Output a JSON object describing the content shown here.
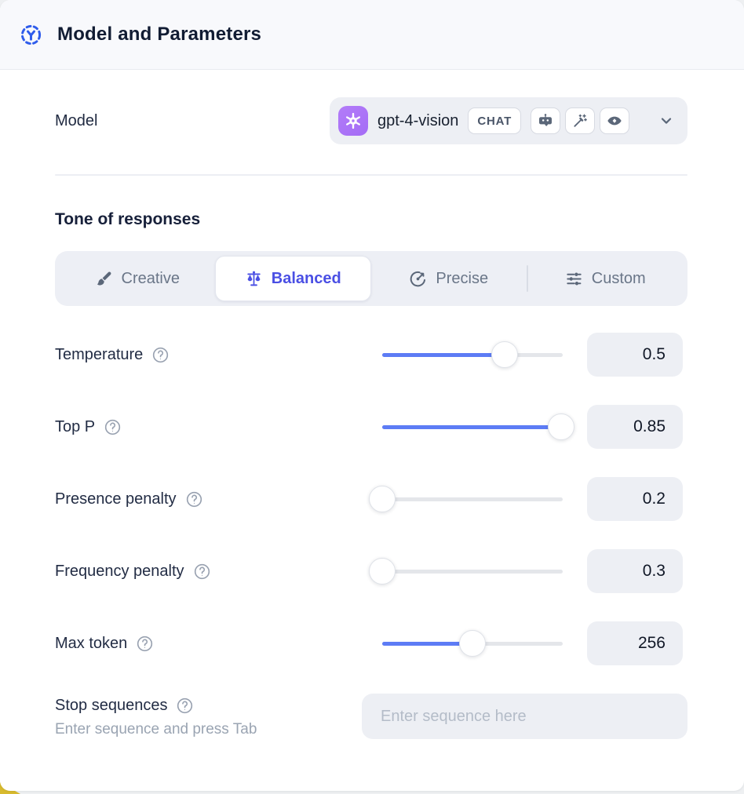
{
  "header": {
    "title": "Model and Parameters",
    "icon": "model-hub-icon"
  },
  "model": {
    "label": "Model",
    "selected": {
      "name": "gpt-4-vision",
      "provider_icon": "openai-logo",
      "type_badge": "CHAT",
      "capability_icons": [
        "robot-icon",
        "wand-sparkles-icon",
        "eye-icon"
      ]
    }
  },
  "tone": {
    "heading": "Tone of responses",
    "options": [
      {
        "label": "Creative",
        "icon": "brush-icon",
        "selected": false
      },
      {
        "label": "Balanced",
        "icon": "scale-icon",
        "selected": true
      },
      {
        "label": "Precise",
        "icon": "target-icon",
        "selected": false
      },
      {
        "label": "Custom",
        "icon": "sliders-icon",
        "selected": false
      }
    ]
  },
  "parameters": [
    {
      "label": "Temperature",
      "value": "0.5",
      "fill_percent": 68
    },
    {
      "label": "Top P",
      "value": "0.85",
      "fill_percent": 99
    },
    {
      "label": "Presence penalty",
      "value": "0.2",
      "fill_percent": 0
    },
    {
      "label": "Frequency penalty",
      "value": "0.3",
      "fill_percent": 0
    },
    {
      "label": "Max token",
      "value": "256",
      "fill_percent": 50
    }
  ],
  "stop_sequences": {
    "label": "Stop sequences",
    "helper": "Enter sequence and press Tab",
    "placeholder": "Enter sequence here",
    "value": ""
  },
  "colors": {
    "accent": "#4a4fe4",
    "slider": "#5d7cf5",
    "header_icon": "#2f5ceb",
    "openai_badge": "#a46cf6",
    "gold_corner": "#d8ba2e"
  }
}
